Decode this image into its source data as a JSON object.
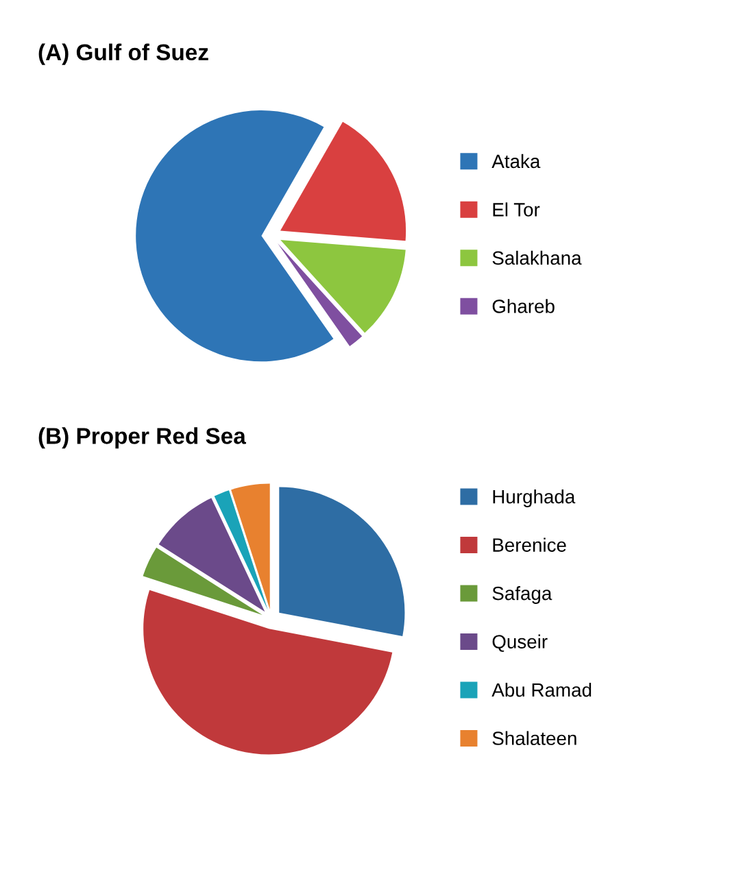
{
  "chart_data": [
    {
      "type": "pie",
      "title": "(A) Gulf of Suez",
      "legend": "right",
      "categories": [
        "Ataka",
        "El Tor",
        "Salakhana",
        "Ghareb"
      ],
      "values": [
        68,
        18,
        12,
        2
      ],
      "colors": [
        "#2e75b6",
        "#d94040",
        "#8dc63f",
        "#7f4fa0"
      ]
    },
    {
      "type": "pie",
      "title": "(B) Proper Red Sea",
      "legend": "right",
      "categories": [
        "Hurghada",
        "Berenice",
        "Safaga",
        "Quseir",
        "Abu Ramad",
        "Shalateen"
      ],
      "values": [
        28,
        52,
        4,
        9,
        2,
        5
      ],
      "colors": [
        "#2e6da4",
        "#c0393b",
        "#6a9a3a",
        "#6b4a8a",
        "#1aa3b8",
        "#e8812f"
      ]
    }
  ]
}
